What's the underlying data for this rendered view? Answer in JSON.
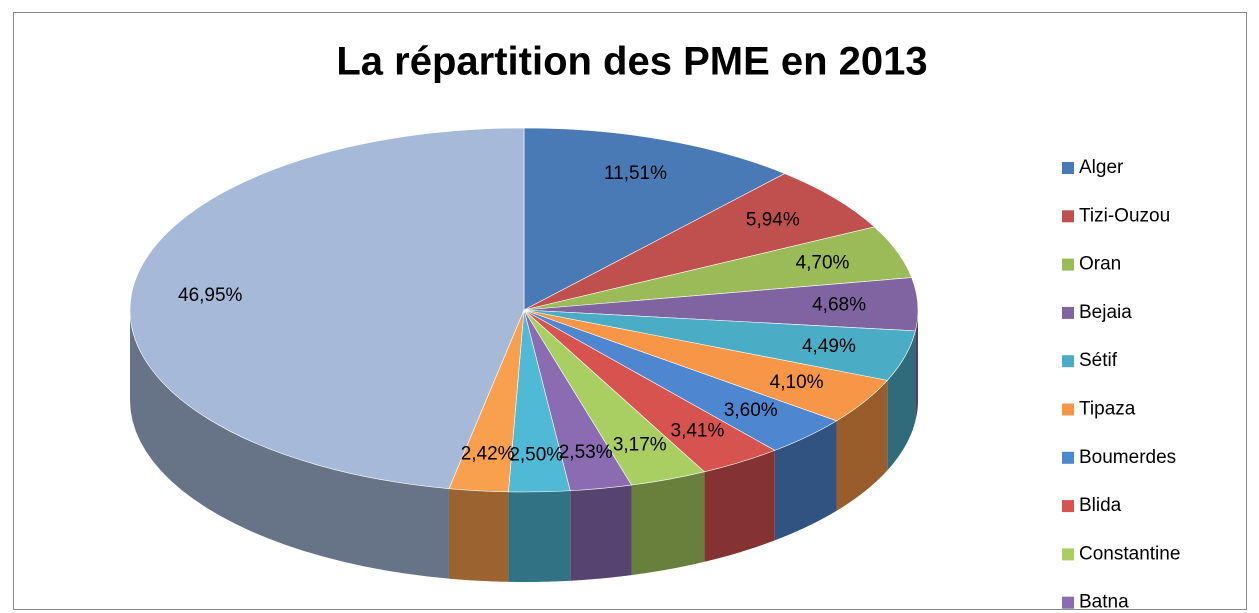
{
  "chart_data": {
    "type": "pie",
    "title": "La répartition des PME en 2013",
    "categories": [
      "Alger",
      "Tizi-Ouzou",
      "Oran",
      "Bejaia",
      "Sétif",
      "Tipaza",
      "Boumerdes",
      "Blida",
      "Constantine",
      "Batna",
      null,
      null,
      null
    ],
    "values": [
      11.51,
      5.94,
      4.7,
      4.68,
      4.49,
      4.1,
      3.6,
      3.41,
      3.17,
      2.53,
      2.5,
      2.42,
      46.95
    ],
    "value_labels": [
      "11,51%",
      "5,94%",
      "4,70%",
      "4,68%",
      "4,49%",
      "4,10%",
      "3,60%",
      "3,41%",
      "3,17%",
      "2,53%",
      "2,50%",
      "2,42%",
      "46,95%"
    ],
    "colors": [
      "#4a7ab5",
      "#c0504d",
      "#9bbb59",
      "#8064a2",
      "#4bacc6",
      "#f79646",
      "#4f86d0",
      "#d65350",
      "#a9cf62",
      "#8b6cb3",
      "#4fb9d6",
      "#f9a04e",
      "#a6b9d9"
    ],
    "legend": "right"
  }
}
